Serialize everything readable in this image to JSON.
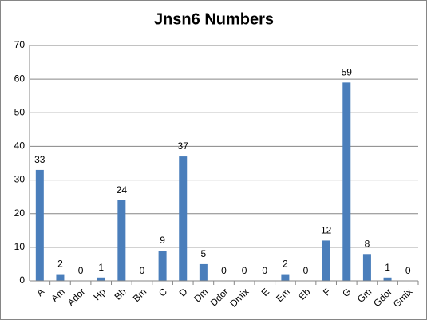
{
  "chart_data": {
    "type": "bar",
    "title": "Jnsn6 Numbers",
    "categories": [
      "A",
      "Am",
      "Ador",
      "Hp",
      "Bb",
      "Bm",
      "C",
      "D",
      "Dm",
      "Ddor",
      "Dmix",
      "E",
      "Em",
      "Eb",
      "F",
      "G",
      "Gm",
      "Gdor",
      "Gmix"
    ],
    "values": [
      33,
      2,
      0,
      1,
      24,
      0,
      9,
      37,
      5,
      0,
      0,
      0,
      2,
      0,
      12,
      59,
      8,
      1,
      0
    ],
    "color": "#4a7ebb",
    "ylim": [
      0,
      70
    ],
    "yticks": [
      0,
      10,
      20,
      30,
      40,
      50,
      60,
      70
    ],
    "grid": true
  }
}
